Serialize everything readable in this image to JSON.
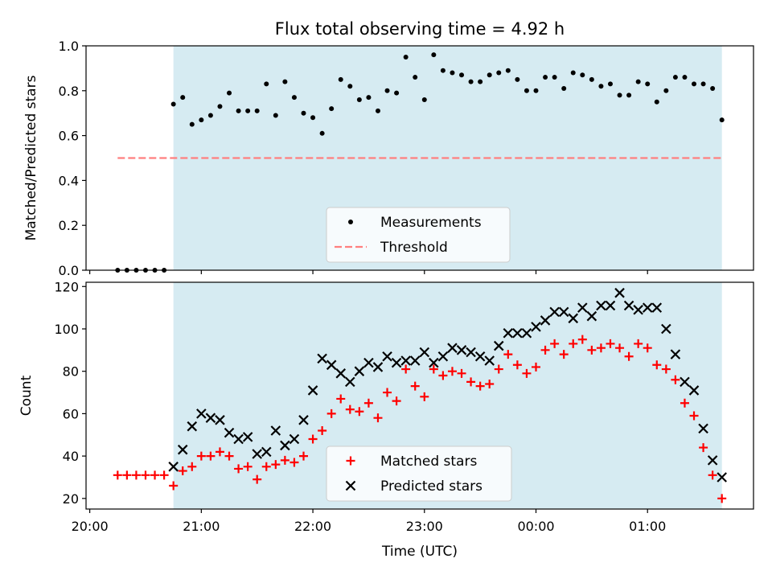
{
  "figure": {
    "title": "Flux total observing time = 4.92 h",
    "xlabel": "Time (UTC)"
  },
  "colors": {
    "observing_band": "#add8e6",
    "measurements": "#000000",
    "threshold": "#ff7f7f",
    "matched": "#ff0000",
    "predicted": "#000000"
  },
  "chart_data": [
    {
      "type": "scatter",
      "title": "Flux total observing time = 4.92 h",
      "xlabel": "",
      "ylabel": "Matched/Predicted stars",
      "ylim": [
        0,
        1.0
      ],
      "yticks": [
        0.0,
        0.2,
        0.4,
        0.6,
        0.8,
        1.0
      ],
      "ytick_labels": [
        "0.0",
        "0.2",
        "0.4",
        "0.6",
        "0.8",
        "1.0"
      ],
      "xlim": [
        "19:58",
        "01:57"
      ],
      "shaded_span": [
        "20:45",
        "01:40"
      ],
      "grid": false,
      "legend_placement": "lower-center",
      "legend": [
        "Measurements",
        "Threshold"
      ],
      "threshold": {
        "value": 0.5,
        "x_range": [
          "20:15",
          "01:40"
        ]
      },
      "series": [
        {
          "name": "Measurements",
          "marker": "dot",
          "points": [
            [
              "20:15",
              0.0
            ],
            [
              "20:20",
              0.0
            ],
            [
              "20:25",
              0.0
            ],
            [
              "20:30",
              0.0
            ],
            [
              "20:35",
              0.0
            ],
            [
              "20:40",
              0.0
            ],
            [
              "20:45",
              0.74
            ],
            [
              "20:50",
              0.77
            ],
            [
              "20:55",
              0.65
            ],
            [
              "21:00",
              0.67
            ],
            [
              "21:05",
              0.69
            ],
            [
              "21:10",
              0.73
            ],
            [
              "21:15",
              0.79
            ],
            [
              "21:20",
              0.71
            ],
            [
              "21:25",
              0.71
            ],
            [
              "21:30",
              0.71
            ],
            [
              "21:35",
              0.83
            ],
            [
              "21:40",
              0.69
            ],
            [
              "21:45",
              0.84
            ],
            [
              "21:50",
              0.77
            ],
            [
              "21:55",
              0.7
            ],
            [
              "22:00",
              0.68
            ],
            [
              "22:05",
              0.61
            ],
            [
              "22:10",
              0.72
            ],
            [
              "22:15",
              0.85
            ],
            [
              "22:20",
              0.82
            ],
            [
              "22:25",
              0.76
            ],
            [
              "22:30",
              0.77
            ],
            [
              "22:35",
              0.71
            ],
            [
              "22:40",
              0.8
            ],
            [
              "22:45",
              0.79
            ],
            [
              "22:50",
              0.95
            ],
            [
              "22:55",
              0.86
            ],
            [
              "23:00",
              0.76
            ],
            [
              "23:05",
              0.96
            ],
            [
              "23:10",
              0.89
            ],
            [
              "23:15",
              0.88
            ],
            [
              "23:20",
              0.87
            ],
            [
              "23:25",
              0.84
            ],
            [
              "23:30",
              0.84
            ],
            [
              "23:35",
              0.87
            ],
            [
              "23:40",
              0.88
            ],
            [
              "23:45",
              0.89
            ],
            [
              "23:50",
              0.85
            ],
            [
              "23:55",
              0.8
            ],
            [
              "00:00",
              0.8
            ],
            [
              "00:05",
              0.86
            ],
            [
              "00:10",
              0.86
            ],
            [
              "00:15",
              0.81
            ],
            [
              "00:20",
              0.88
            ],
            [
              "00:25",
              0.87
            ],
            [
              "00:30",
              0.85
            ],
            [
              "00:35",
              0.82
            ],
            [
              "00:40",
              0.83
            ],
            [
              "00:45",
              0.78
            ],
            [
              "00:50",
              0.78
            ],
            [
              "00:55",
              0.84
            ],
            [
              "01:00",
              0.83
            ],
            [
              "01:05",
              0.75
            ],
            [
              "01:10",
              0.8
            ],
            [
              "01:15",
              0.86
            ],
            [
              "01:20",
              0.86
            ],
            [
              "01:25",
              0.83
            ],
            [
              "01:30",
              0.83
            ],
            [
              "01:35",
              0.81
            ],
            [
              "01:40",
              0.67
            ]
          ]
        }
      ]
    },
    {
      "type": "scatter",
      "title": "",
      "xlabel": "Time (UTC)",
      "ylabel": "Count",
      "ylim": [
        15,
        122
      ],
      "yticks": [
        20,
        40,
        60,
        80,
        100,
        120
      ],
      "ytick_labels": [
        "20",
        "40",
        "60",
        "80",
        "100",
        "120"
      ],
      "xlim": [
        "19:58",
        "01:57"
      ],
      "xticks": [
        "20:00",
        "21:00",
        "22:00",
        "23:00",
        "00:00",
        "01:00"
      ],
      "shaded_span": [
        "20:45",
        "01:40"
      ],
      "grid": false,
      "legend_placement": "lower-center",
      "legend": [
        "Matched stars",
        "Predicted stars"
      ],
      "series": [
        {
          "name": "Matched stars",
          "marker": "plus",
          "points": [
            [
              "20:15",
              31
            ],
            [
              "20:20",
              31
            ],
            [
              "20:25",
              31
            ],
            [
              "20:30",
              31
            ],
            [
              "20:35",
              31
            ],
            [
              "20:40",
              31
            ],
            [
              "20:45",
              26
            ],
            [
              "20:50",
              33
            ],
            [
              "20:55",
              35
            ],
            [
              "21:00",
              40
            ],
            [
              "21:05",
              40
            ],
            [
              "21:10",
              42
            ],
            [
              "21:15",
              40
            ],
            [
              "21:20",
              34
            ],
            [
              "21:25",
              35
            ],
            [
              "21:30",
              29
            ],
            [
              "21:35",
              35
            ],
            [
              "21:40",
              36
            ],
            [
              "21:45",
              38
            ],
            [
              "21:50",
              37
            ],
            [
              "21:55",
              40
            ],
            [
              "22:00",
              48
            ],
            [
              "22:05",
              52
            ],
            [
              "22:10",
              60
            ],
            [
              "22:15",
              67
            ],
            [
              "22:20",
              62
            ],
            [
              "22:25",
              61
            ],
            [
              "22:30",
              65
            ],
            [
              "22:35",
              58
            ],
            [
              "22:40",
              70
            ],
            [
              "22:45",
              66
            ],
            [
              "22:50",
              81
            ],
            [
              "22:55",
              73
            ],
            [
              "23:00",
              68
            ],
            [
              "23:05",
              81
            ],
            [
              "23:10",
              78
            ],
            [
              "23:15",
              80
            ],
            [
              "23:20",
              79
            ],
            [
              "23:25",
              75
            ],
            [
              "23:30",
              73
            ],
            [
              "23:35",
              74
            ],
            [
              "23:40",
              81
            ],
            [
              "23:45",
              88
            ],
            [
              "23:50",
              83
            ],
            [
              "23:55",
              79
            ],
            [
              "00:00",
              82
            ],
            [
              "00:05",
              90
            ],
            [
              "00:10",
              93
            ],
            [
              "00:15",
              88
            ],
            [
              "00:20",
              93
            ],
            [
              "00:25",
              95
            ],
            [
              "00:30",
              90
            ],
            [
              "00:35",
              91
            ],
            [
              "00:40",
              93
            ],
            [
              "00:45",
              91
            ],
            [
              "00:50",
              87
            ],
            [
              "00:55",
              93
            ],
            [
              "01:00",
              91
            ],
            [
              "01:05",
              83
            ],
            [
              "01:10",
              81
            ],
            [
              "01:15",
              76
            ],
            [
              "01:20",
              65
            ],
            [
              "01:25",
              59
            ],
            [
              "01:30",
              44
            ],
            [
              "01:35",
              31
            ],
            [
              "01:40",
              20
            ]
          ]
        },
        {
          "name": "Predicted stars",
          "marker": "x",
          "points": [
            [
              "20:45",
              35
            ],
            [
              "20:50",
              43
            ],
            [
              "20:55",
              54
            ],
            [
              "21:00",
              60
            ],
            [
              "21:05",
              58
            ],
            [
              "21:10",
              57
            ],
            [
              "21:15",
              51
            ],
            [
              "21:20",
              48
            ],
            [
              "21:25",
              49
            ],
            [
              "21:30",
              41
            ],
            [
              "21:35",
              42
            ],
            [
              "21:40",
              52
            ],
            [
              "21:45",
              45
            ],
            [
              "21:50",
              48
            ],
            [
              "21:55",
              57
            ],
            [
              "22:00",
              71
            ],
            [
              "22:05",
              86
            ],
            [
              "22:10",
              83
            ],
            [
              "22:15",
              79
            ],
            [
              "22:20",
              75
            ],
            [
              "22:25",
              80
            ],
            [
              "22:30",
              84
            ],
            [
              "22:35",
              82
            ],
            [
              "22:40",
              87
            ],
            [
              "22:45",
              84
            ],
            [
              "22:50",
              85
            ],
            [
              "22:55",
              85
            ],
            [
              "23:00",
              89
            ],
            [
              "23:05",
              84
            ],
            [
              "23:10",
              87
            ],
            [
              "23:15",
              91
            ],
            [
              "23:20",
              90
            ],
            [
              "23:25",
              89
            ],
            [
              "23:30",
              87
            ],
            [
              "23:35",
              85
            ],
            [
              "23:40",
              92
            ],
            [
              "23:45",
              98
            ],
            [
              "23:50",
              98
            ],
            [
              "23:55",
              98
            ],
            [
              "00:00",
              101
            ],
            [
              "00:05",
              104
            ],
            [
              "00:10",
              108
            ],
            [
              "00:15",
              108
            ],
            [
              "00:20",
              105
            ],
            [
              "00:25",
              110
            ],
            [
              "00:30",
              106
            ],
            [
              "00:35",
              111
            ],
            [
              "00:40",
              111
            ],
            [
              "00:45",
              117
            ],
            [
              "00:50",
              111
            ],
            [
              "00:55",
              109
            ],
            [
              "01:00",
              110
            ],
            [
              "01:05",
              110
            ],
            [
              "01:10",
              100
            ],
            [
              "01:15",
              88
            ],
            [
              "01:20",
              75
            ],
            [
              "01:25",
              71
            ],
            [
              "01:30",
              53
            ],
            [
              "01:35",
              38
            ],
            [
              "01:40",
              30
            ]
          ]
        }
      ]
    }
  ]
}
